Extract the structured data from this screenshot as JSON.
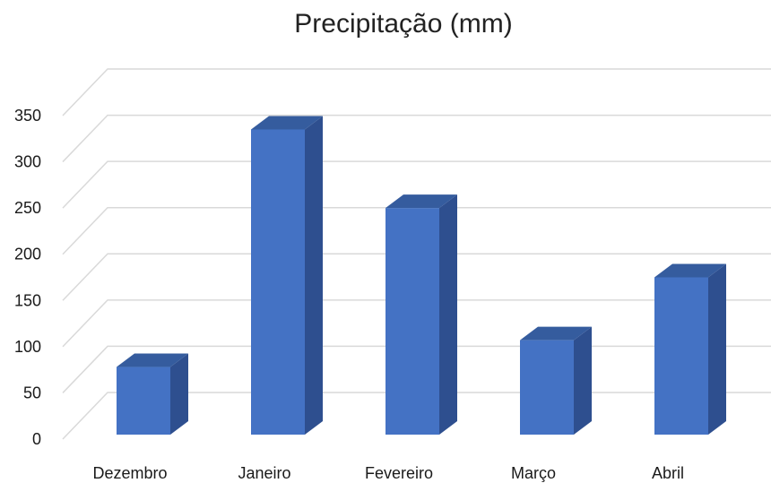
{
  "chart_data": {
    "type": "bar",
    "title": "Precipitação (mm)",
    "categories": [
      "Dezembro",
      "Janeiro",
      "Fevereiro",
      "Março",
      "Abril"
    ],
    "values": [
      78,
      335,
      250,
      107,
      175
    ],
    "ylim": [
      0,
      350
    ],
    "yticks": [
      0,
      50,
      100,
      150,
      200,
      250,
      300,
      350
    ],
    "grid": true,
    "style": "3d-column",
    "colors": {
      "front": "#4472C4",
      "side": "#2E4F8F",
      "top": "#355C9E",
      "grid": "#D9D9D9"
    }
  }
}
